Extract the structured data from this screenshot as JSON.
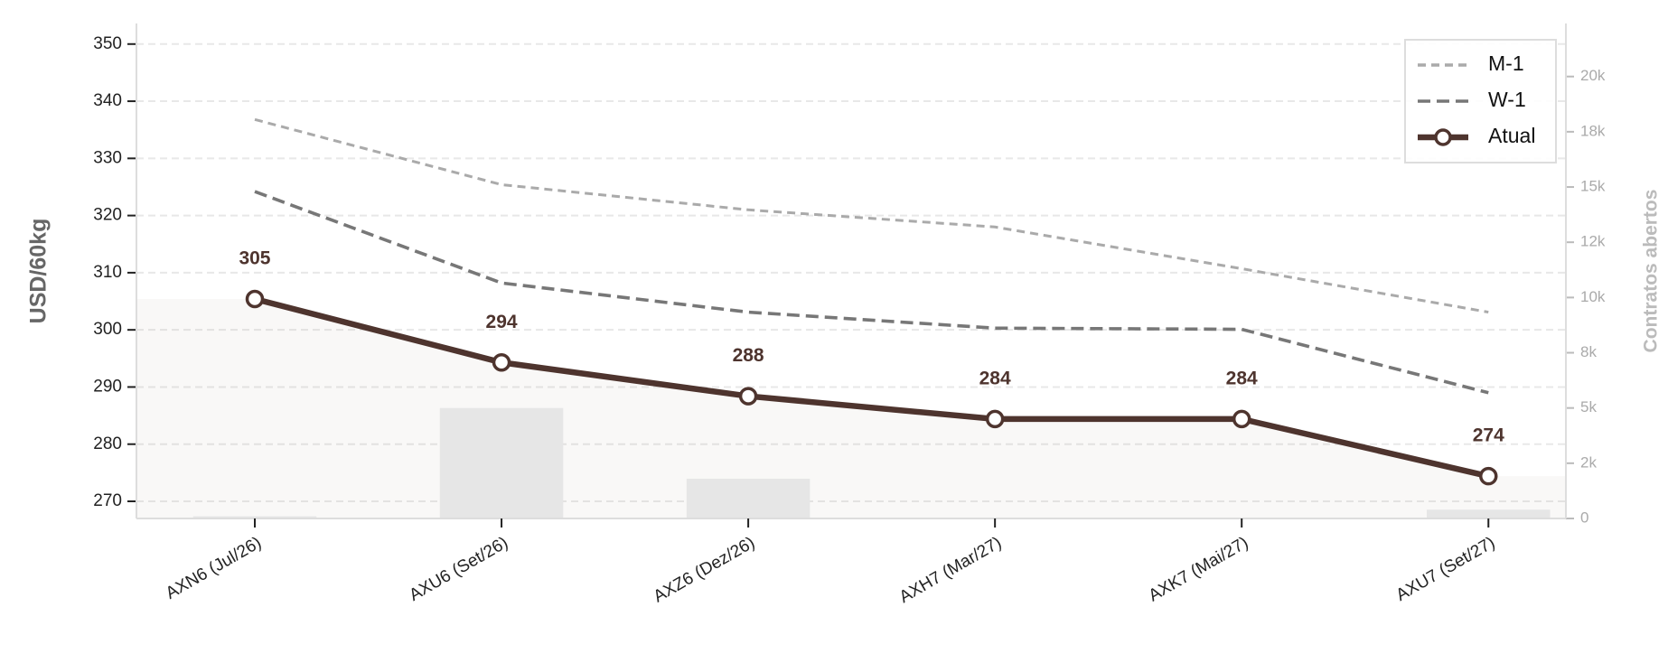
{
  "chart_data": {
    "type": "line",
    "categories": [
      "AXN6 (Jul/26)",
      "AXU6 (Set/26)",
      "AXZ6 (Dez/26)",
      "AXH7 (Mar/27)",
      "AXK7 (Mai/27)",
      "AXU7 (Set/27)"
    ],
    "y_label": "USD/60kg",
    "y2_label": "Contratos abertos",
    "ylim": [
      267,
      353.6
    ],
    "yticks": [
      270,
      280,
      290,
      300,
      310,
      320,
      330,
      340,
      350
    ],
    "y2lim": [
      0,
      22400
    ],
    "y2ticks": [
      0,
      {
        "value": 2500,
        "label": "2k"
      },
      {
        "value": 5000,
        "label": "5k"
      },
      {
        "value": 7500,
        "label": "8k"
      },
      {
        "value": 10000,
        "label": "10k"
      },
      {
        "value": 12500,
        "label": "12k"
      },
      {
        "value": 15000,
        "label": "15k"
      },
      {
        "value": 17500,
        "label": "18k"
      },
      {
        "value": 20000,
        "label": "20k"
      }
    ],
    "grid": true,
    "legend": "upper right",
    "series": [
      {
        "name": "M-1",
        "color": "#aaaaaa",
        "style": "dashed",
        "values": [
          336.8,
          325.4,
          321.0,
          318.0,
          310.7,
          303.1
        ]
      },
      {
        "name": "W-1",
        "color": "#777777",
        "style": "dashed",
        "values": [
          324.2,
          308.2,
          303.1,
          300.3,
          300.1,
          289.0
        ]
      },
      {
        "name": "Atual",
        "color": "#4e342e",
        "style": "solid",
        "markers": true,
        "values": [
          305.4,
          294.3,
          288.4,
          284.4,
          284.4,
          274.4
        ],
        "value_labels": [
          "305",
          "294",
          "288",
          "284",
          "284",
          "274"
        ]
      },
      {
        "type": "bar",
        "axis": "y2",
        "color": "#e6e6e6",
        "values": [
          100,
          5000,
          1800,
          0,
          0,
          400
        ]
      }
    ]
  }
}
